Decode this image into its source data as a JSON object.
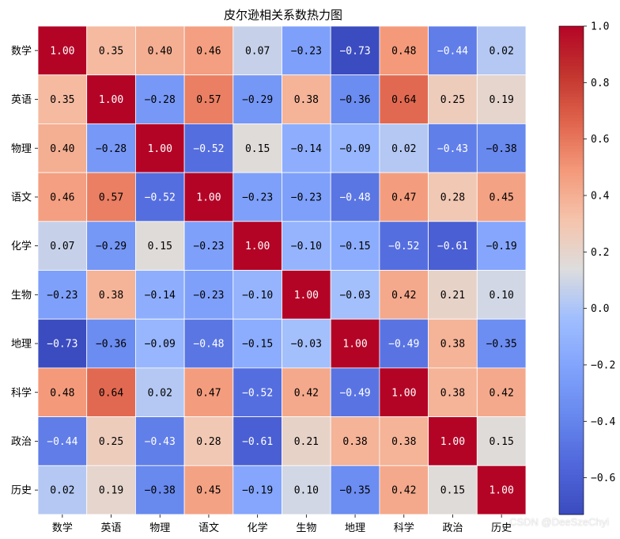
{
  "chart_data": {
    "type": "heatmap",
    "title": "皮尔逊相关系数热力图",
    "x_labels": [
      "数学",
      "英语",
      "物理",
      "语文",
      "化学",
      "生物",
      "地理",
      "科学",
      "政治",
      "历史"
    ],
    "y_labels": [
      "数学",
      "英语",
      "物理",
      "语文",
      "化学",
      "生物",
      "地理",
      "科学",
      "政治",
      "历史"
    ],
    "values": [
      [
        1.0,
        0.35,
        0.4,
        0.46,
        0.07,
        -0.23,
        -0.73,
        0.48,
        -0.44,
        0.02
      ],
      [
        0.35,
        1.0,
        -0.28,
        0.57,
        -0.29,
        0.38,
        -0.36,
        0.64,
        0.25,
        0.19
      ],
      [
        0.4,
        -0.28,
        1.0,
        -0.52,
        0.15,
        -0.14,
        -0.09,
        0.02,
        -0.43,
        -0.38
      ],
      [
        0.46,
        0.57,
        -0.52,
        1.0,
        -0.23,
        -0.23,
        -0.48,
        0.47,
        0.28,
        0.45
      ],
      [
        0.07,
        -0.29,
        0.15,
        -0.23,
        1.0,
        -0.1,
        -0.15,
        -0.52,
        -0.61,
        -0.19
      ],
      [
        -0.23,
        0.38,
        -0.14,
        -0.23,
        -0.1,
        1.0,
        -0.03,
        0.42,
        0.21,
        0.1
      ],
      [
        -0.73,
        -0.36,
        -0.09,
        -0.48,
        -0.15,
        -0.03,
        1.0,
        -0.49,
        0.38,
        -0.35
      ],
      [
        0.48,
        0.64,
        0.02,
        0.47,
        -0.52,
        0.42,
        -0.49,
        1.0,
        0.38,
        0.42
      ],
      [
        -0.44,
        0.25,
        -0.43,
        0.28,
        -0.61,
        0.21,
        0.38,
        0.38,
        1.0,
        0.15
      ],
      [
        0.02,
        0.19,
        -0.38,
        0.45,
        -0.19,
        0.1,
        -0.35,
        0.42,
        0.15,
        1.0
      ]
    ],
    "value_format": "0.00",
    "colorscale": "coolwarm",
    "color_range": [
      -0.73,
      1.0
    ],
    "colorbar_ticks": [
      1.0,
      0.8,
      0.6,
      0.4,
      0.2,
      0.0,
      -0.2,
      -0.4,
      -0.6
    ],
    "colorbar_ticks_label": [
      "1.0",
      "0.8",
      "0.6",
      "0.4",
      "0.2",
      "0.0",
      "−0.2",
      "−0.4",
      "−0.6"
    ],
    "xlabel": "",
    "ylabel": "",
    "grid": false,
    "legend": "colorbar-right"
  },
  "watermark": "CSDN @DeeSzeChyi"
}
